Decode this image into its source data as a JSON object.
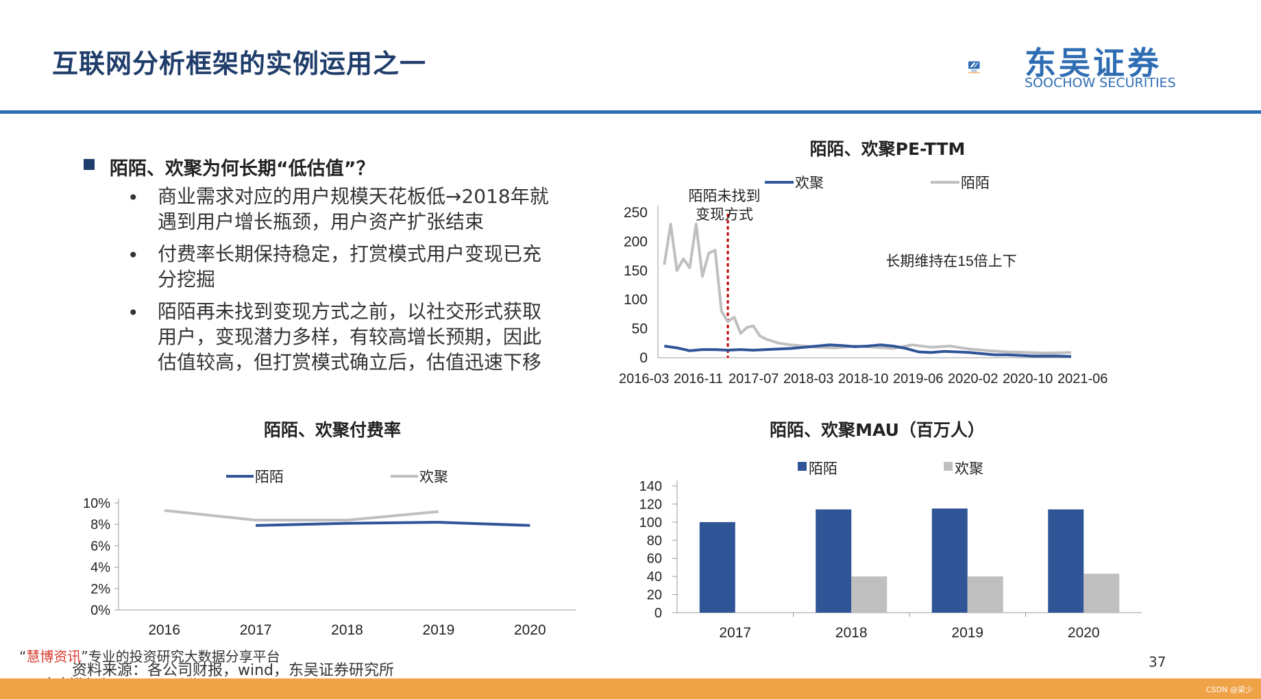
{
  "page": {
    "title": "互联网分析框架的实例运用之一",
    "logo": {
      "cn": "东吴证券",
      "en": "SOOCHOW SECURITIES",
      "mark": "SCS"
    },
    "heading": "陌陌、欢聚为何长期“低估值”？",
    "bullets": [
      {
        "line1": "商业需求对应的用户规模天花板低→2018年就",
        "line2": "遇到用户增长瓶颈，用户资产扩张结束"
      },
      {
        "line1": "付费率长期保持稳定，打赏模式用户变现已充",
        "line2": "分挖掘"
      },
      {
        "line1": "陌陌再未找到变现方式之前，以社交形式获取",
        "line2": "用户，变现潜力多样，有较高增长预期，因此",
        "line3": "估值较高，但打赏模式确立后，估值迅速下移"
      }
    ],
    "bullet_mark": "•",
    "source": "资料来源：各公司财报，wind，东吴证券研究所",
    "page_number": "37",
    "watermark": {
      "quote_open": "“",
      "red": "慧博资讯",
      "rest": "”专业的投资研究大数据分享平台",
      "line2": "点击进入 http://www.hibor.com.cn"
    },
    "csdn": "CSDN @梁少"
  },
  "colors": {
    "blue": "#2f5597",
    "gray": "#bfbfbf",
    "title": "#1f3d6b",
    "accent": "#2f6db3",
    "orange": "#f0a247",
    "red_dashed": "#c00000"
  },
  "chart_data": [
    {
      "id": "pe",
      "type": "line",
      "title": "陌陌、欢聚PE-TTM",
      "x_ticks": [
        "2016-03",
        "2016-11",
        "2017-07",
        "2018-03",
        "2018-10",
        "2019-06",
        "2020-02",
        "2020-10",
        "2021-06"
      ],
      "y_ticks": [
        "0",
        "50",
        "100",
        "150",
        "200",
        "250"
      ],
      "ylim": [
        0,
        250
      ],
      "annotations": {
        "left_line1": "陌陌未找到",
        "left_line2": "变现方式",
        "right": "长期维持在15倍上下",
        "marker_x": "2017-01"
      },
      "series": [
        {
          "name": "欢聚",
          "color": "#2f5597",
          "x": [
            "2016-03",
            "2016-05",
            "2016-07",
            "2016-09",
            "2016-11",
            "2017-01",
            "2017-03",
            "2017-05",
            "2017-07",
            "2017-09",
            "2017-11",
            "2018-01",
            "2018-03",
            "2018-05",
            "2018-07",
            "2018-09",
            "2018-11",
            "2019-01",
            "2019-03",
            "2019-05",
            "2019-07",
            "2019-09",
            "2019-11",
            "2020-01",
            "2020-03",
            "2020-05",
            "2020-07",
            "2020-09",
            "2020-11",
            "2021-01",
            "2021-03",
            "2021-05",
            "2021-07"
          ],
          "values": [
            20,
            17,
            12,
            14,
            14,
            13,
            14,
            13,
            14,
            15,
            16,
            18,
            20,
            22,
            21,
            19,
            20,
            22,
            20,
            16,
            10,
            9,
            11,
            10,
            9,
            7,
            5,
            5,
            4,
            3,
            3,
            3,
            2
          ]
        },
        {
          "name": "陌陌",
          "color": "#bfbfbf",
          "x": [
            "2016-03",
            "2016-04",
            "2016-05",
            "2016-06",
            "2016-07",
            "2016-08",
            "2016-09",
            "2016-10",
            "2016-11",
            "2016-12",
            "2017-01",
            "2017-02",
            "2017-03",
            "2017-04",
            "2017-05",
            "2017-06",
            "2017-07",
            "2017-09",
            "2017-11",
            "2018-01",
            "2018-03",
            "2018-06",
            "2018-09",
            "2018-12",
            "2019-03",
            "2019-06",
            "2019-09",
            "2019-12",
            "2020-03",
            "2020-06",
            "2020-09",
            "2020-12",
            "2021-03",
            "2021-07"
          ],
          "values": [
            160,
            230,
            150,
            170,
            155,
            230,
            140,
            180,
            185,
            80,
            62,
            70,
            42,
            52,
            55,
            38,
            32,
            25,
            22,
            20,
            18,
            17,
            20,
            18,
            16,
            22,
            18,
            20,
            15,
            12,
            10,
            9,
            8,
            9
          ]
        }
      ]
    },
    {
      "id": "payrate",
      "type": "line",
      "title": "陌陌、欢聚付费率",
      "categories": [
        "2016",
        "2017",
        "2018",
        "2019",
        "2020"
      ],
      "y_ticks": [
        "0%",
        "2%",
        "4%",
        "6%",
        "8%",
        "10%"
      ],
      "ylim": [
        0,
        10
      ],
      "series": [
        {
          "name": "陌陌",
          "color": "#2f5597",
          "values": [
            null,
            7.9,
            8.1,
            8.2,
            7.9
          ]
        },
        {
          "name": "欢聚",
          "color": "#bfbfbf",
          "values": [
            9.3,
            8.4,
            8.4,
            9.2,
            null
          ]
        }
      ]
    },
    {
      "id": "mau",
      "type": "bar",
      "title": "陌陌、欢聚MAU（百万人）",
      "categories": [
        "2017",
        "2018",
        "2019",
        "2020"
      ],
      "y_ticks": [
        "0",
        "20",
        "40",
        "60",
        "80",
        "100",
        "120",
        "140"
      ],
      "ylim": [
        0,
        140
      ],
      "series": [
        {
          "name": "陌陌",
          "color": "#2f5597",
          "values": [
            100,
            114,
            115,
            114
          ]
        },
        {
          "name": "欢聚",
          "color": "#bfbfbf",
          "values": [
            null,
            40,
            40,
            43
          ]
        }
      ]
    }
  ]
}
